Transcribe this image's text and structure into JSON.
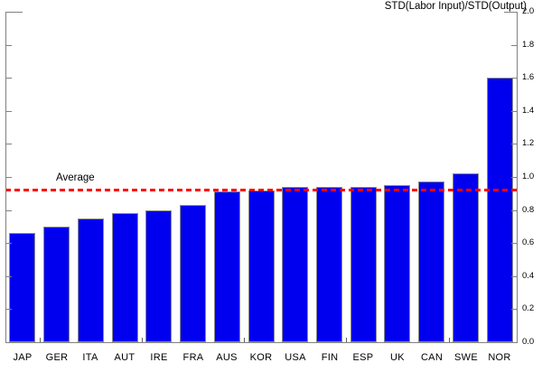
{
  "chart_data": {
    "type": "bar",
    "title": "STD(Labor Input)/STD(Output)",
    "categories": [
      "JAP",
      "GER",
      "ITA",
      "AUT",
      "IRE",
      "FRA",
      "AUS",
      "KOR",
      "USA",
      "FIN",
      "ESP",
      "UK",
      "CAN",
      "SWE",
      "NOR"
    ],
    "values": [
      0.66,
      0.7,
      0.75,
      0.78,
      0.8,
      0.83,
      0.91,
      0.92,
      0.94,
      0.94,
      0.94,
      0.95,
      0.97,
      1.02,
      1.6
    ],
    "average_line": {
      "label": "Average",
      "value": 0.92,
      "color": "#ff0000",
      "style": "dashed"
    },
    "ylim": [
      0.0,
      2.0
    ],
    "ytick_step": 0.2,
    "ytick_labels": [
      "0.0",
      "0.2",
      "0.4",
      "0.6",
      "0.8",
      "1.0",
      "1.2",
      "1.4",
      "1.6",
      "1.8",
      "2.0"
    ],
    "y_axis_side": "right",
    "grid": false,
    "legend": "none",
    "bar_color": "#0000ee",
    "bar_edge_color": "#8c8c8c",
    "axis_color": "#808080",
    "x_minor_tick_slots": [
      1,
      4,
      7,
      10,
      13
    ]
  }
}
